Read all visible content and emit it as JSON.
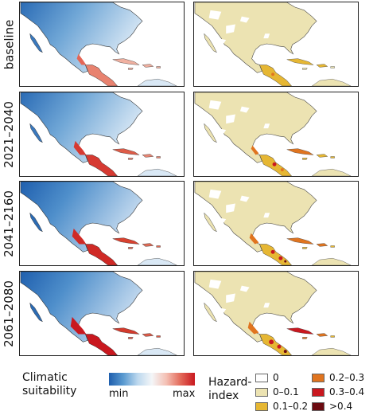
{
  "rows": [
    {
      "label": "baseline"
    },
    {
      "label": "2021–2040"
    },
    {
      "label": "2041–2160"
    },
    {
      "label": "2061–2080"
    }
  ],
  "legend": {
    "suitability": {
      "title_line1": "Climatic",
      "title_line2": "suitability",
      "min_label": "min",
      "max_label": "max",
      "colors": [
        "#1f5fae",
        "#bcd8ee",
        "#f4f6f8",
        "#e36a5a",
        "#c9181f"
      ]
    },
    "hazard": {
      "title_line1": "Hazard-",
      "title_line2": "index",
      "classes": [
        {
          "label": "0",
          "color": "#ffffff"
        },
        {
          "label": "0–0.1",
          "color": "#ece3b2"
        },
        {
          "label": "0.1–0.2",
          "color": "#e6b733"
        },
        {
          "label": "0.2–0.3",
          "color": "#e0741f"
        },
        {
          "label": "0.3–0.4",
          "color": "#c9181f"
        },
        {
          "label": ">0.4",
          "color": "#6b0a10"
        }
      ]
    }
  }
}
